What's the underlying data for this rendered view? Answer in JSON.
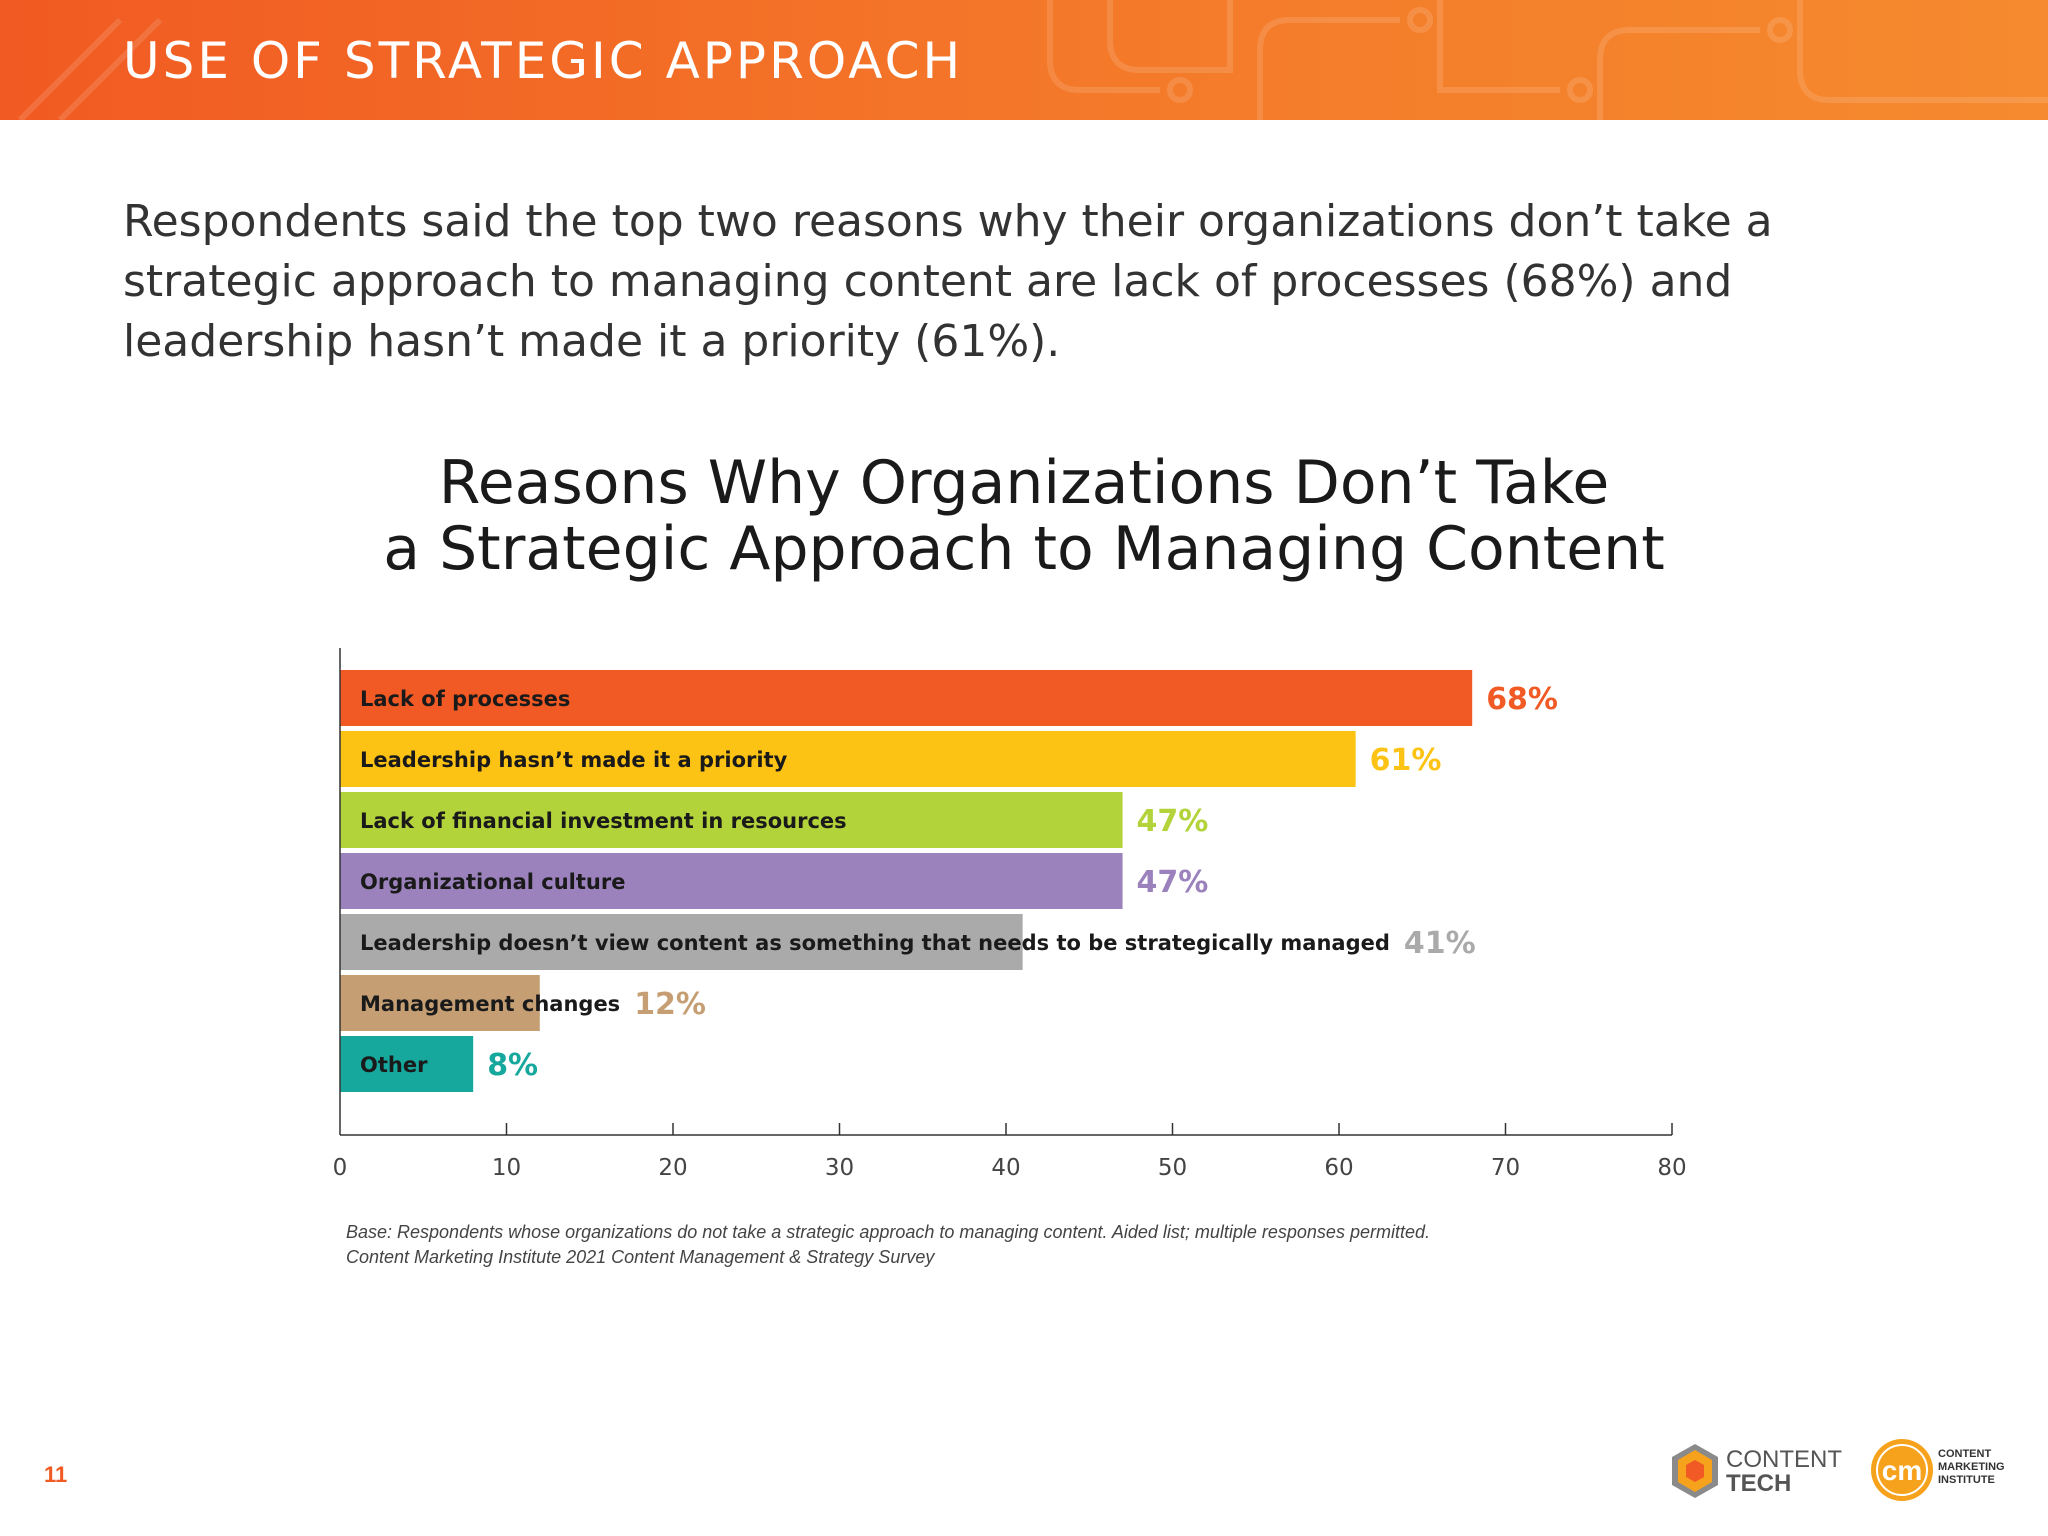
{
  "header": {
    "title": "USE OF STRATEGIC APPROACH"
  },
  "intro": {
    "text": "Respondents said the top two reasons why their organizations don’t take a strategic approach to managing content are lack of processes (68%) and leadership hasn’t made it a priority (61%)."
  },
  "chart_data": {
    "type": "bar",
    "orientation": "horizontal",
    "title_lines": [
      "Reasons Why Organizations Don’t Take",
      "a Strategic Approach to Managing Content"
    ],
    "categories": [
      "Lack of processes",
      "Leadership hasn’t made it a priority",
      "Lack of financial investment in resources",
      "Organizational culture",
      "Leadership doesn’t view content as something that needs to be strategically managed",
      "Management changes",
      "Other"
    ],
    "values": [
      68,
      61,
      47,
      47,
      41,
      12,
      8
    ],
    "value_labels": [
      "68%",
      "61%",
      "47%",
      "47%",
      "41%",
      "12%",
      "8%"
    ],
    "colors": [
      "#f15a24",
      "#fdc314",
      "#b3d33a",
      "#9b82bd",
      "#aaaaaa",
      "#c59f73",
      "#16a79d"
    ],
    "xlim": [
      0,
      80
    ],
    "x_ticks": [
      0,
      10,
      20,
      30,
      40,
      50,
      60,
      70,
      80
    ],
    "grid": false
  },
  "footnote": {
    "line1": "Base: Respondents whose organizations do not take a strategic approach to managing content. Aided list; multiple responses permitted.",
    "line2": "Content Marketing Institute 2021 Content Management & Strategy Survey"
  },
  "page_number": "11",
  "logos": {
    "content_tech": {
      "line1": "CONTENT",
      "line2": "TECH"
    },
    "cmi": {
      "mark": "cm",
      "line1": "CONTENT",
      "line2": "MARKETING",
      "line3": "INSTITUTE"
    }
  }
}
